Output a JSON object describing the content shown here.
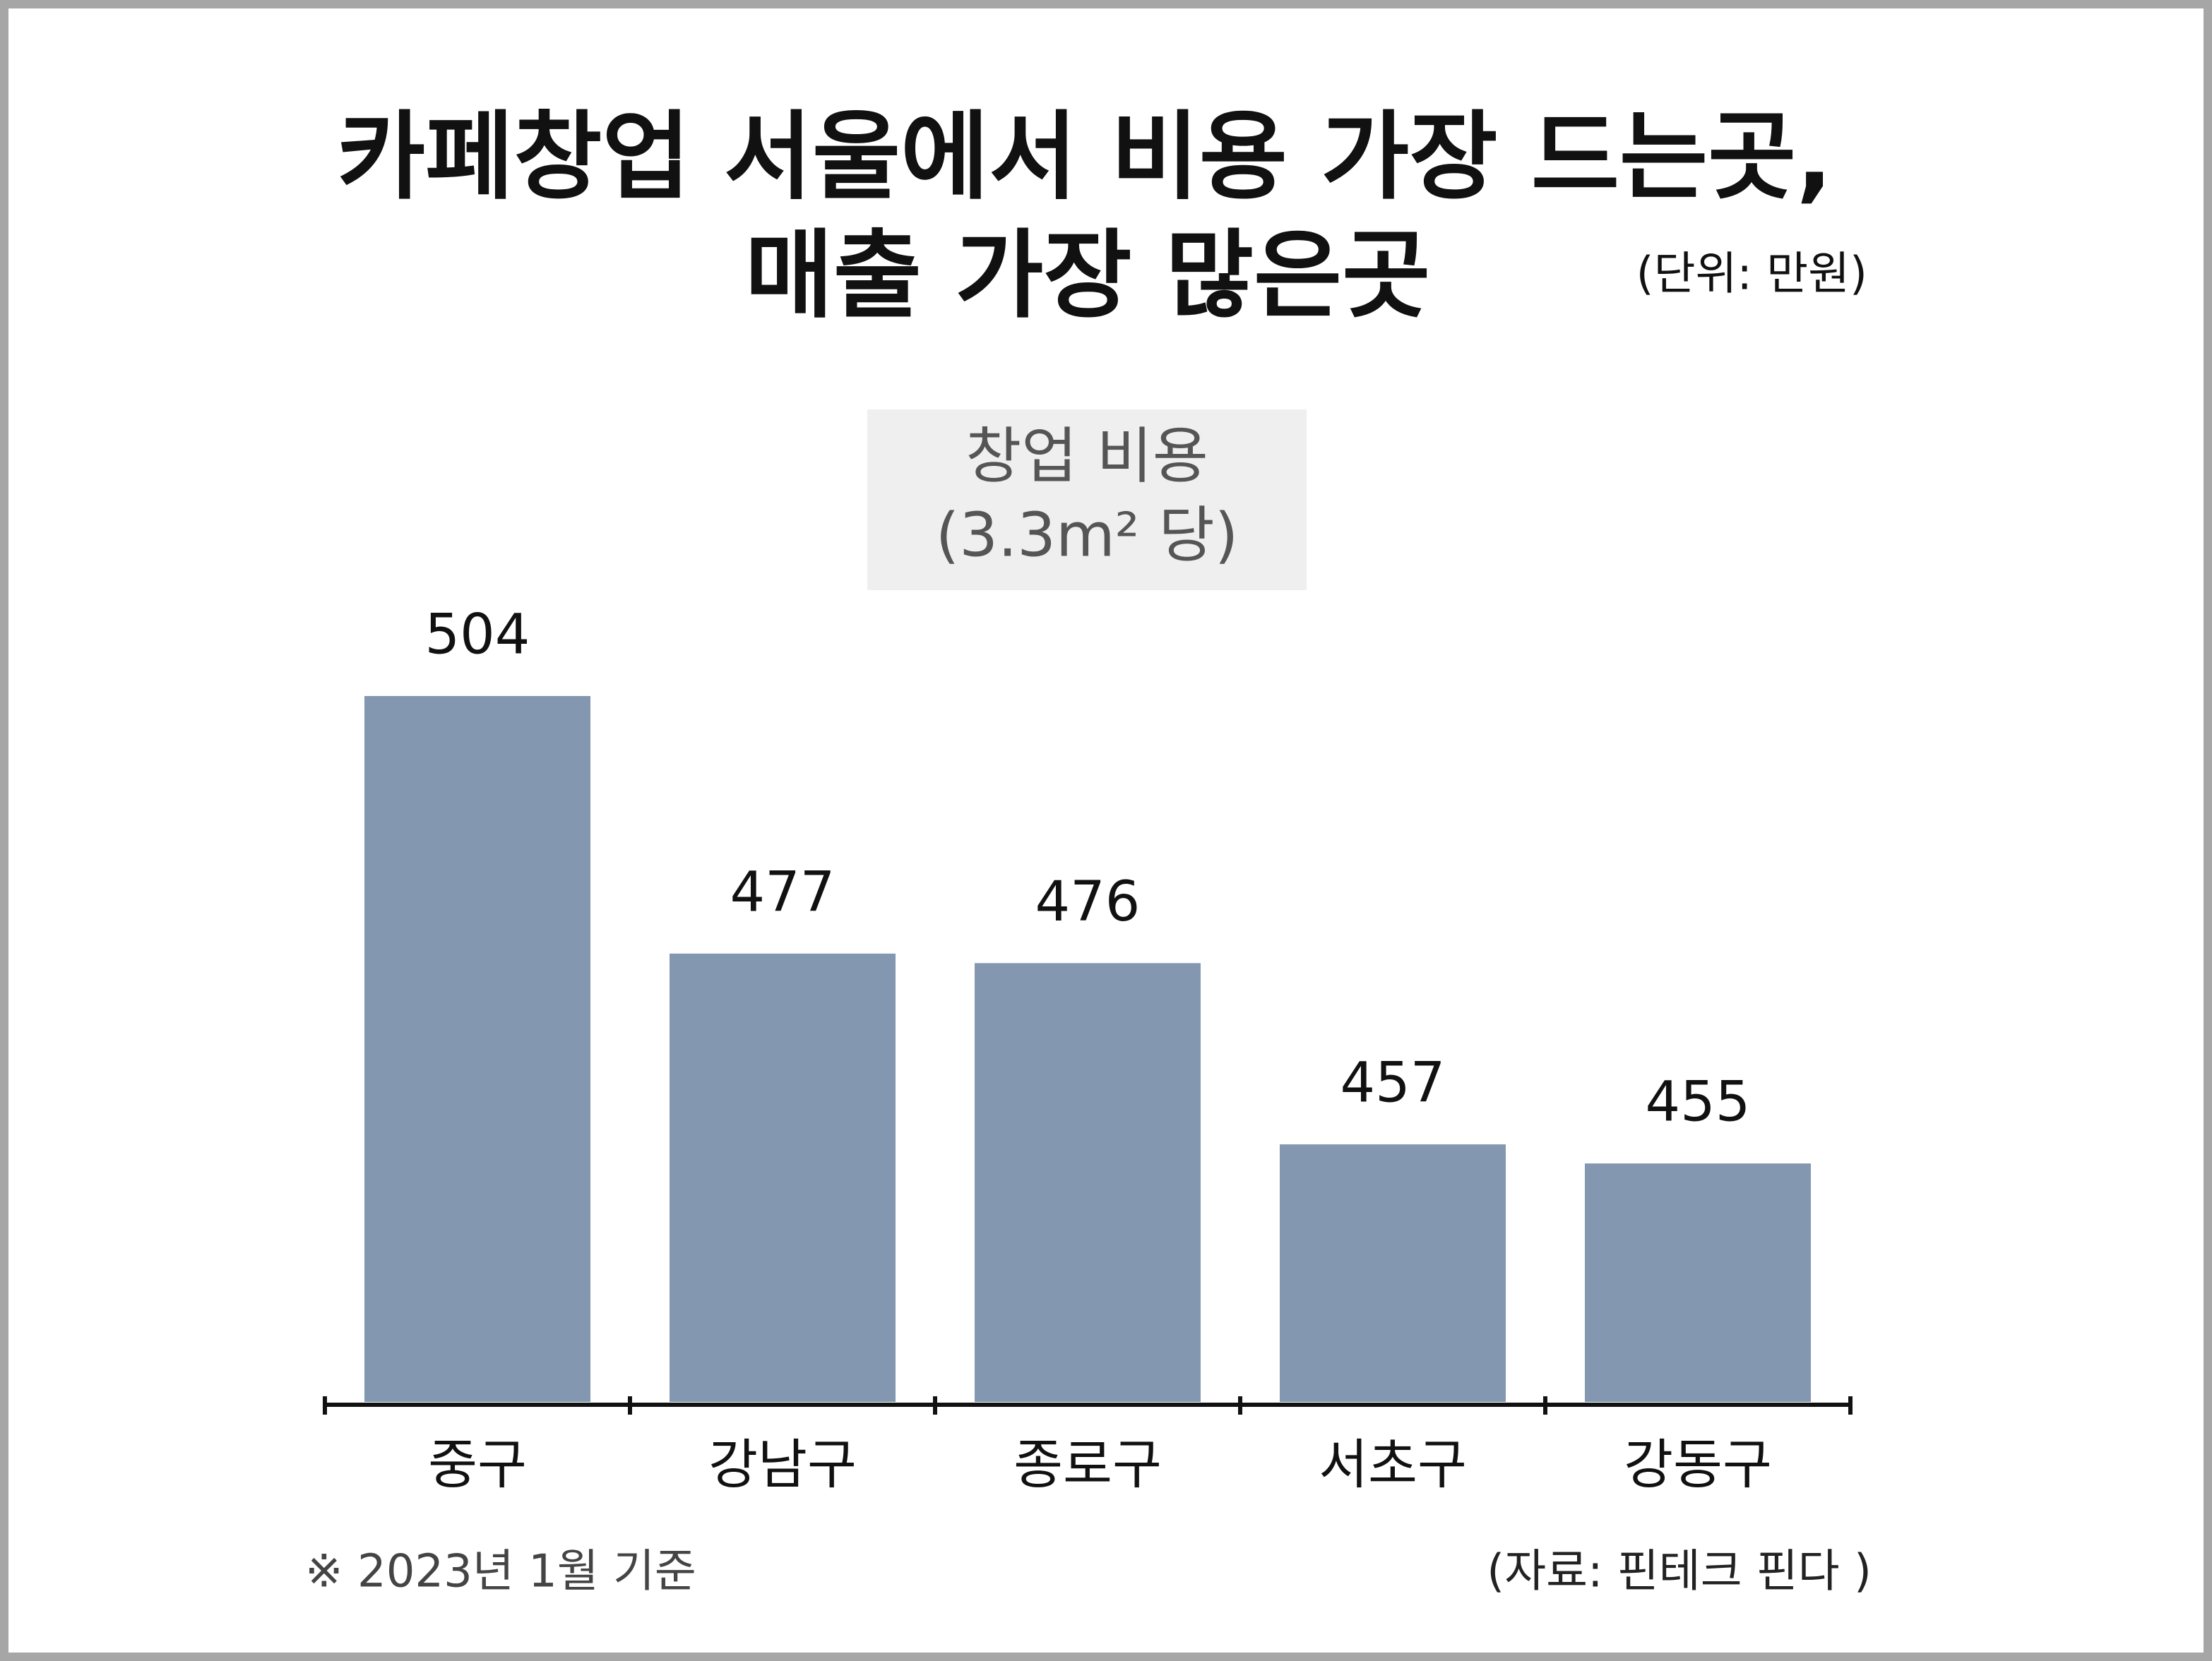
{
  "chart_data": {
    "type": "bar",
    "title": [
      "카페창업 서울에서 비용 가장 드는곳,",
      "매출 가장 많은곳"
    ],
    "unit": "(단위: 만원)",
    "label": [
      "창업 비용",
      "(3.3m² 당)"
    ],
    "categories": [
      "중구",
      "강남구",
      "종로구",
      "서초구",
      "강동구"
    ],
    "values": [
      504,
      477,
      476,
      457,
      455
    ],
    "color": "#8497b0",
    "ylim": [
      430,
      504
    ],
    "note": "※ 2023년 1월 기준",
    "source": "(자료: 핀테크 핀다 )"
  }
}
